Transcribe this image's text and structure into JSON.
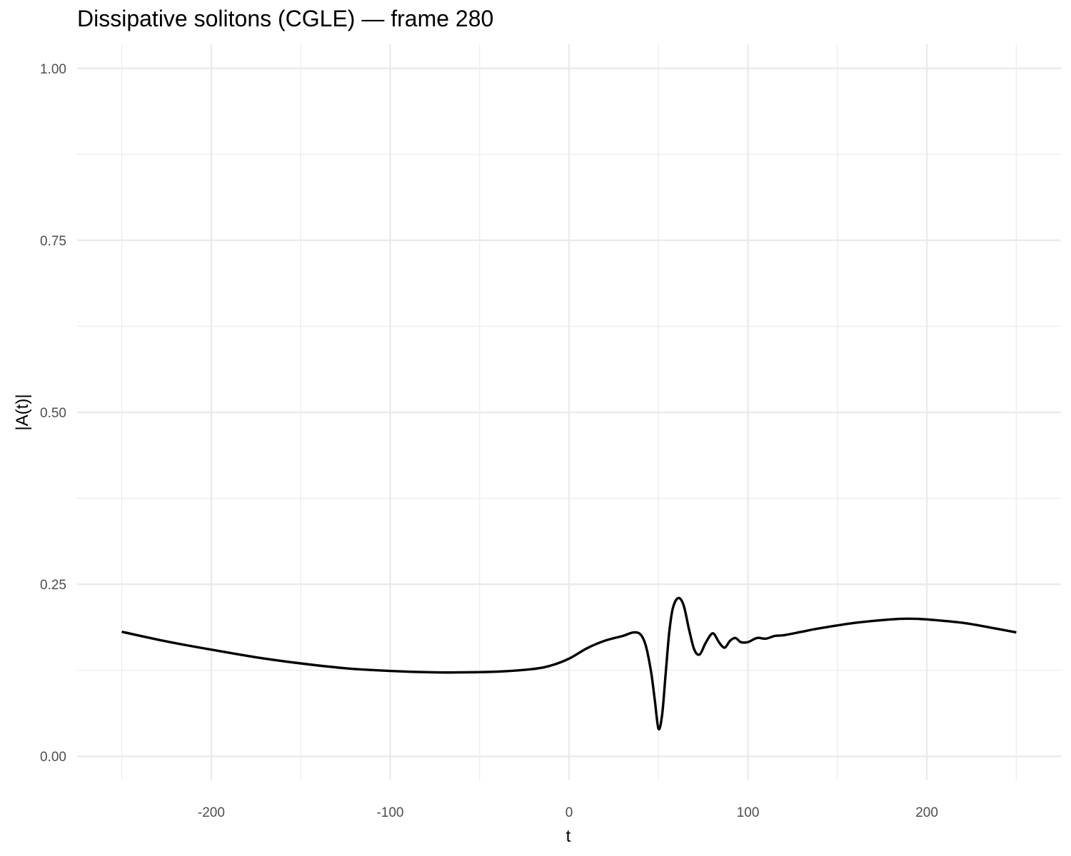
{
  "chart_data": {
    "type": "line",
    "title": "Dissipative solitons (CGLE) — frame 280",
    "xlabel": "t",
    "ylabel": "|A(t)|",
    "xlim": [
      -275,
      275
    ],
    "ylim": [
      -0.035,
      1.035
    ],
    "x_ticks": [
      -200,
      -100,
      0,
      100,
      200
    ],
    "x_tick_labels": [
      "-200",
      "-100",
      "0",
      "100",
      "200"
    ],
    "x_minor_ticks": [
      -250,
      -150,
      -50,
      50,
      150,
      250
    ],
    "y_ticks": [
      0,
      0.25,
      0.5,
      0.75,
      1.0
    ],
    "y_tick_labels": [
      "0.00",
      "0.25",
      "0.50",
      "0.75",
      "1.00"
    ],
    "y_minor_ticks": [
      0.125,
      0.375,
      0.625,
      0.875
    ],
    "grid": true,
    "line_color": "#000000",
    "grid_color": "#ebebeb",
    "series": [
      {
        "x": [
          -250,
          -225,
          -200,
          -175,
          -150,
          -125,
          -100,
          -75,
          -60,
          -40,
          -20,
          -10,
          0,
          10,
          20,
          30,
          36,
          40,
          43,
          46,
          48,
          50,
          52,
          54,
          56,
          58,
          61,
          64,
          67,
          70,
          73,
          76,
          79,
          81,
          84,
          87,
          90,
          93,
          96,
          100,
          105,
          110,
          115,
          120,
          130,
          140,
          160,
          180,
          190,
          200,
          220,
          240,
          250
        ],
        "y": [
          0.181,
          0.167,
          0.155,
          0.144,
          0.135,
          0.128,
          0.124,
          0.122,
          0.122,
          0.123,
          0.127,
          0.132,
          0.142,
          0.157,
          0.168,
          0.175,
          0.18,
          0.177,
          0.16,
          0.12,
          0.08,
          0.04,
          0.06,
          0.12,
          0.18,
          0.215,
          0.23,
          0.22,
          0.185,
          0.155,
          0.148,
          0.163,
          0.176,
          0.178,
          0.165,
          0.158,
          0.168,
          0.172,
          0.166,
          0.166,
          0.172,
          0.171,
          0.175,
          0.176,
          0.181,
          0.186,
          0.194,
          0.199,
          0.2,
          0.199,
          0.194,
          0.185,
          0.18
        ]
      }
    ]
  }
}
